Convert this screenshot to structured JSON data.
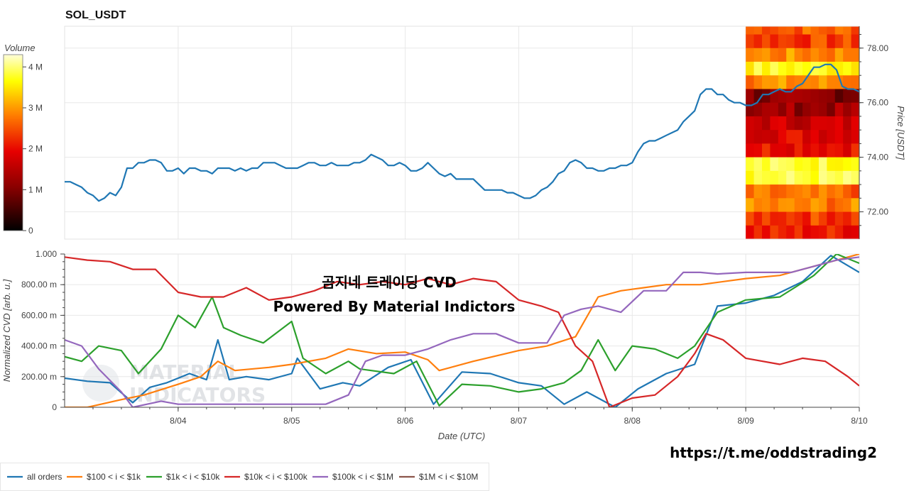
{
  "chart_data": [
    {
      "type": "line",
      "title": "SOL_USDT",
      "ylabel": "Price [USDT]",
      "ylim": [
        71.0,
        78.8
      ],
      "yticks": [
        "72.00",
        "74.00",
        "76.00",
        "78.00"
      ],
      "xlim": [
        3.0,
        10.0
      ],
      "grid": true,
      "series": [
        {
          "name": "price",
          "color": "#1f77b4",
          "x": [
            3.0,
            3.05,
            3.1,
            3.15,
            3.2,
            3.25,
            3.3,
            3.35,
            3.4,
            3.45,
            3.5,
            3.55,
            3.6,
            3.65,
            3.7,
            3.75,
            3.8,
            3.85,
            3.9,
            3.95,
            4.0,
            4.05,
            4.1,
            4.15,
            4.2,
            4.25,
            4.3,
            4.35,
            4.4,
            4.45,
            4.5,
            4.55,
            4.6,
            4.65,
            4.7,
            4.75,
            4.8,
            4.85,
            4.9,
            4.95,
            5.0,
            5.05,
            5.1,
            5.15,
            5.2,
            5.25,
            5.3,
            5.35,
            5.4,
            5.45,
            5.5,
            5.55,
            5.6,
            5.65,
            5.7,
            5.75,
            5.8,
            5.85,
            5.9,
            5.95,
            6.0,
            6.05,
            6.1,
            6.15,
            6.2,
            6.25,
            6.3,
            6.35,
            6.4,
            6.45,
            6.5,
            6.55,
            6.6,
            6.65,
            6.7,
            6.75,
            6.8,
            6.85,
            6.9,
            6.95,
            7.0,
            7.05,
            7.1,
            7.15,
            7.2,
            7.25,
            7.3,
            7.35,
            7.4,
            7.45,
            7.5,
            7.55,
            7.6,
            7.65,
            7.7,
            7.75,
            7.8,
            7.85,
            7.9,
            7.95,
            8.0,
            8.05,
            8.1,
            8.15,
            8.2,
            8.25,
            8.3,
            8.35,
            8.4,
            8.45,
            8.5,
            8.55,
            8.6,
            8.65,
            8.7,
            8.75,
            8.8,
            8.85,
            8.9,
            8.95,
            9.0,
            9.05,
            9.1,
            9.15,
            9.2,
            9.25,
            9.3,
            9.35,
            9.4,
            9.45,
            9.5,
            9.55,
            9.6,
            9.65,
            9.7,
            9.75,
            9.8,
            9.85,
            9.9,
            9.95,
            10.0
          ],
          "values": [
            73.1,
            73.1,
            73.0,
            72.9,
            72.7,
            72.6,
            72.4,
            72.5,
            72.7,
            72.6,
            72.9,
            73.6,
            73.6,
            73.8,
            73.8,
            73.9,
            73.9,
            73.8,
            73.5,
            73.5,
            73.6,
            73.4,
            73.6,
            73.6,
            73.5,
            73.5,
            73.4,
            73.6,
            73.6,
            73.6,
            73.5,
            73.6,
            73.5,
            73.6,
            73.6,
            73.8,
            73.8,
            73.8,
            73.7,
            73.6,
            73.6,
            73.6,
            73.7,
            73.8,
            73.8,
            73.7,
            73.7,
            73.8,
            73.7,
            73.7,
            73.7,
            73.8,
            73.8,
            73.9,
            74.1,
            74.0,
            73.9,
            73.7,
            73.7,
            73.8,
            73.7,
            73.5,
            73.5,
            73.6,
            73.8,
            73.6,
            73.4,
            73.3,
            73.4,
            73.2,
            73.2,
            73.2,
            73.2,
            73.0,
            72.8,
            72.8,
            72.8,
            72.8,
            72.7,
            72.7,
            72.6,
            72.5,
            72.5,
            72.6,
            72.8,
            72.9,
            73.1,
            73.4,
            73.5,
            73.8,
            73.9,
            73.8,
            73.6,
            73.6,
            73.5,
            73.5,
            73.6,
            73.6,
            73.7,
            73.7,
            73.8,
            74.2,
            74.5,
            74.6,
            74.6,
            74.7,
            74.8,
            74.9,
            75.0,
            75.3,
            75.5,
            75.7,
            76.3,
            76.5,
            76.5,
            76.3,
            76.3,
            76.1,
            76.0,
            76.0,
            75.9,
            75.9,
            76.0,
            76.3,
            76.3,
            76.4,
            76.5,
            76.4,
            76.4,
            76.6,
            76.7,
            77.0,
            77.3,
            77.3,
            77.4,
            77.4,
            77.2,
            76.6,
            76.5,
            76.5,
            76.4
          ]
        }
      ]
    },
    {
      "type": "line",
      "title": "",
      "xlabel": "Date (UTC)",
      "ylabel": "Normalized CVD [arb. u.]",
      "ylim": [
        0,
        1.0
      ],
      "yticks": [
        "0",
        "200.00 m",
        "400.00 m",
        "600.00 m",
        "800.00 m",
        "1.000"
      ],
      "xticks": [
        "8/04",
        "8/05",
        "8/06",
        "8/07",
        "8/08",
        "8/09",
        "8/10"
      ],
      "xlim": [
        3.0,
        10.0
      ],
      "grid": true,
      "legend": "bottom",
      "series": [
        {
          "name": "all orders",
          "color": "#1f77b4",
          "x": [
            3.0,
            3.2,
            3.4,
            3.6,
            3.75,
            3.9,
            4.1,
            4.25,
            4.35,
            4.45,
            4.6,
            4.8,
            5.0,
            5.05,
            5.25,
            5.45,
            5.6,
            5.85,
            6.05,
            6.25,
            6.5,
            6.75,
            7.0,
            7.2,
            7.4,
            7.6,
            7.85,
            8.05,
            8.3,
            8.55,
            8.75,
            9.0,
            9.25,
            9.5,
            9.75,
            10.0
          ],
          "values": [
            0.19,
            0.17,
            0.16,
            0.03,
            0.13,
            0.16,
            0.22,
            0.18,
            0.44,
            0.18,
            0.2,
            0.18,
            0.22,
            0.32,
            0.12,
            0.16,
            0.14,
            0.26,
            0.31,
            0.02,
            0.23,
            0.22,
            0.16,
            0.14,
            0.02,
            0.1,
            0.0,
            0.12,
            0.22,
            0.28,
            0.66,
            0.68,
            0.73,
            0.82,
            0.99,
            0.88
          ]
        },
        {
          "name": "$100 < i < $1k",
          "color": "#ff7f0e",
          "x": [
            3.0,
            3.2,
            3.5,
            3.7,
            4.0,
            4.2,
            4.35,
            4.5,
            4.8,
            5.0,
            5.3,
            5.5,
            5.75,
            6.0,
            6.2,
            6.3,
            6.6,
            7.0,
            7.25,
            7.5,
            7.7,
            7.9,
            8.1,
            8.3,
            8.6,
            9.0,
            9.3,
            9.6,
            10.0
          ],
          "values": [
            0.0,
            0.0,
            0.05,
            0.08,
            0.15,
            0.2,
            0.3,
            0.24,
            0.26,
            0.28,
            0.32,
            0.38,
            0.35,
            0.36,
            0.31,
            0.24,
            0.3,
            0.37,
            0.4,
            0.46,
            0.72,
            0.76,
            0.78,
            0.8,
            0.8,
            0.84,
            0.86,
            0.92,
            1.0
          ]
        },
        {
          "name": "$1k < i < $10k",
          "color": "#2ca02c",
          "x": [
            3.0,
            3.15,
            3.3,
            3.5,
            3.65,
            3.85,
            4.0,
            4.15,
            4.3,
            4.4,
            4.55,
            4.75,
            5.0,
            5.1,
            5.3,
            5.5,
            5.6,
            5.9,
            6.1,
            6.3,
            6.5,
            6.75,
            7.0,
            7.2,
            7.4,
            7.55,
            7.7,
            7.85,
            8.0,
            8.2,
            8.4,
            8.55,
            8.75,
            9.0,
            9.3,
            9.6,
            9.8,
            10.0
          ],
          "values": [
            0.33,
            0.3,
            0.4,
            0.37,
            0.22,
            0.38,
            0.6,
            0.52,
            0.72,
            0.52,
            0.47,
            0.42,
            0.56,
            0.32,
            0.22,
            0.3,
            0.25,
            0.22,
            0.3,
            0.01,
            0.15,
            0.14,
            0.1,
            0.12,
            0.16,
            0.24,
            0.44,
            0.24,
            0.4,
            0.38,
            0.32,
            0.4,
            0.62,
            0.7,
            0.72,
            0.86,
            1.0,
            0.94
          ]
        },
        {
          "name": "$10k < i < $100k",
          "color": "#d62728",
          "x": [
            3.0,
            3.2,
            3.4,
            3.6,
            3.8,
            4.0,
            4.2,
            4.4,
            4.6,
            4.8,
            5.0,
            5.2,
            5.4,
            5.6,
            5.8,
            6.0,
            6.2,
            6.4,
            6.6,
            6.8,
            7.0,
            7.2,
            7.35,
            7.5,
            7.65,
            7.8,
            8.0,
            8.2,
            8.4,
            8.55,
            8.65,
            8.8,
            9.0,
            9.3,
            9.5,
            9.7,
            9.9,
            10.0
          ],
          "values": [
            0.98,
            0.96,
            0.95,
            0.9,
            0.9,
            0.75,
            0.72,
            0.72,
            0.78,
            0.7,
            0.72,
            0.76,
            0.82,
            0.8,
            0.82,
            0.8,
            0.84,
            0.8,
            0.84,
            0.82,
            0.7,
            0.66,
            0.62,
            0.4,
            0.3,
            0.0,
            0.06,
            0.08,
            0.2,
            0.35,
            0.48,
            0.44,
            0.32,
            0.28,
            0.32,
            0.3,
            0.2,
            0.14
          ]
        },
        {
          "name": "$100k < i < $1M",
          "color": "#9467bd",
          "x": [
            3.0,
            3.15,
            3.3,
            3.5,
            3.6,
            3.85,
            4.0,
            4.5,
            5.0,
            5.3,
            5.5,
            5.65,
            5.8,
            6.0,
            6.2,
            6.4,
            6.6,
            6.8,
            7.0,
            7.25,
            7.4,
            7.55,
            7.7,
            7.9,
            8.1,
            8.3,
            8.45,
            8.6,
            8.75,
            9.0,
            9.2,
            9.4,
            9.6,
            9.8,
            10.0
          ],
          "values": [
            0.44,
            0.4,
            0.25,
            0.1,
            0.0,
            0.04,
            0.02,
            0.02,
            0.02,
            0.02,
            0.08,
            0.3,
            0.34,
            0.34,
            0.38,
            0.44,
            0.48,
            0.48,
            0.42,
            0.42,
            0.6,
            0.64,
            0.66,
            0.62,
            0.76,
            0.76,
            0.88,
            0.88,
            0.87,
            0.88,
            0.88,
            0.88,
            0.92,
            0.96,
            0.98
          ]
        },
        {
          "name": "$1M < i < $10M",
          "color": "#8c564b",
          "x": [],
          "values": []
        }
      ]
    }
  ],
  "heatmap": {
    "colorbar_label": "Volume",
    "colorbar_ticks": [
      "0",
      "1 M",
      "2 M",
      "3 M",
      "4 M"
    ]
  },
  "overlay": {
    "line1": "곰지네 트레이딩 CVD",
    "line2": "Powered By Material Indictors",
    "url": "https://t.me/oddstrading2",
    "watermark_line1": "MATERIAL",
    "watermark_line2": "INDICATORS"
  }
}
